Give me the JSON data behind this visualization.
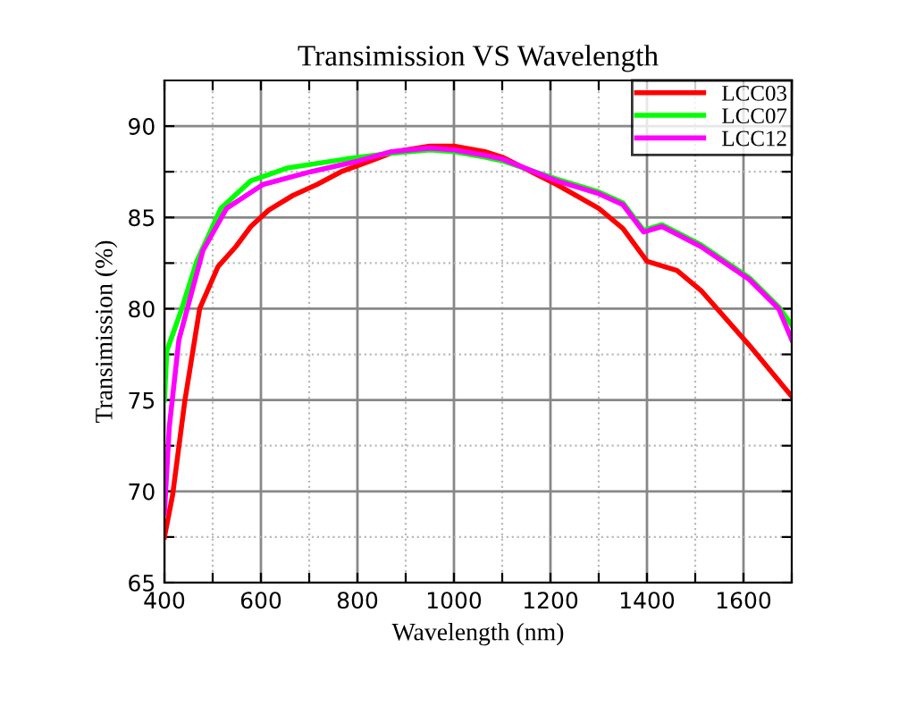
{
  "chart_data": {
    "type": "line",
    "title": "Transimission VS Wavelength",
    "xlabel": "Wavelength (nm)",
    "ylabel": "Transimission (%)",
    "xlim": [
      400,
      1700
    ],
    "ylim": [
      65,
      92.5
    ],
    "xticks": [
      400,
      {
        "value": 500,
        "label": null
      },
      600,
      {
        "value": 700,
        "label": null
      },
      800,
      {
        "value": 900,
        "label": null
      },
      1000,
      {
        "value": 1100,
        "label": null
      },
      1200,
      {
        "value": 1300,
        "label": null
      },
      1400,
      {
        "value": 1500,
        "label": null
      },
      1600,
      {
        "value": 1700,
        "label": null
      }
    ],
    "yticks": [
      65,
      {
        "value": 67.5,
        "label": null
      },
      70,
      {
        "value": 72.5,
        "label": null
      },
      75,
      {
        "value": 77.5,
        "label": null
      },
      80,
      {
        "value": 82.5,
        "label": null
      },
      85,
      {
        "value": 87.5,
        "label": null
      },
      90
    ],
    "grid": true,
    "legend": "top right",
    "marker": "none",
    "line_style": "solid",
    "series": [
      {
        "name": "LCC03",
        "color": "#ff0000",
        "x": [
          400,
          417,
          442,
          473,
          511,
          548,
          579,
          616,
          666,
          716,
          766,
          828,
          878,
          950,
          1000,
          1064,
          1100,
          1213,
          1300,
          1350,
          1400,
          1462,
          1512,
          1612,
          1700
        ],
        "values": [
          67.5,
          69.8,
          74.9,
          80.0,
          82.3,
          83.4,
          84.5,
          85.4,
          86.2,
          86.8,
          87.5,
          88.1,
          88.6,
          88.9,
          88.9,
          88.6,
          88.3,
          86.8,
          85.5,
          84.4,
          82.6,
          82.1,
          81.0,
          78.0,
          75.2
        ]
      },
      {
        "name": "LCC07",
        "color": "#00ff00",
        "x": [
          400,
          405,
          436,
          467,
          517,
          579,
          654,
          777,
          865,
          950,
          1000,
          1064,
          1100,
          1213,
          1300,
          1350,
          1393,
          1431,
          1512,
          1612,
          1673,
          1700
        ],
        "values": [
          75.0,
          77.7,
          80.0,
          82.6,
          85.5,
          87.0,
          87.7,
          88.2,
          88.5,
          88.7,
          88.6,
          88.3,
          88.1,
          87.1,
          86.4,
          85.8,
          84.3,
          84.6,
          83.5,
          81.7,
          80.1,
          79.1
        ]
      },
      {
        "name": "LCC12",
        "color": "#ff00ff",
        "x": [
          400,
          410,
          430,
          480,
          529,
          604,
          703,
          803,
          870,
          950,
          1000,
          1064,
          1100,
          1213,
          1300,
          1350,
          1393,
          1431,
          1512,
          1612,
          1673,
          1700
        ],
        "values": [
          68.8,
          73.5,
          78.3,
          83.2,
          85.5,
          86.8,
          87.5,
          88.1,
          88.6,
          88.8,
          88.7,
          88.4,
          88.2,
          87.0,
          86.3,
          85.7,
          84.2,
          84.5,
          83.4,
          81.6,
          80.0,
          78.3
        ]
      }
    ]
  }
}
